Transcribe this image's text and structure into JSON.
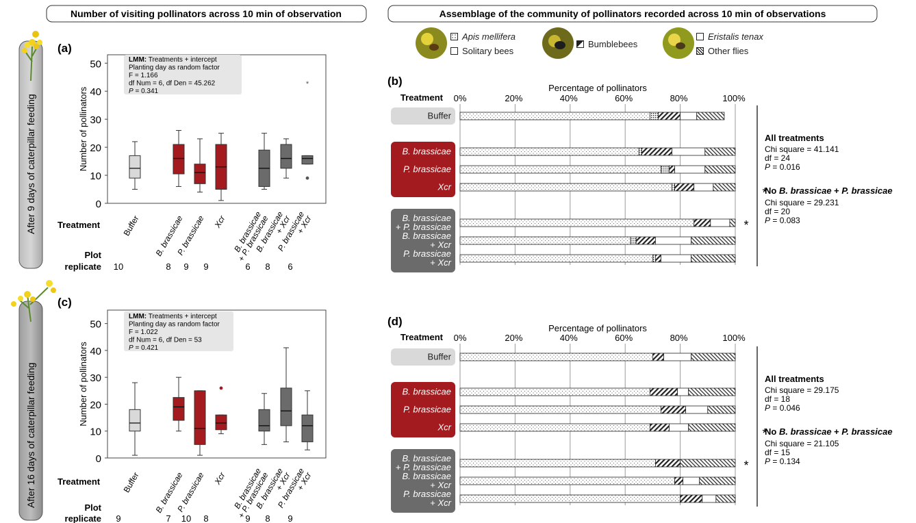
{
  "titles": {
    "left": "Number of visiting pollinators across 10 min of observation",
    "right": "Assemblage of the community of pollinators recorded across 10 min of observations"
  },
  "side_labels": {
    "top": "After 9 days of caterpillar feeding",
    "bottom": "After 16 days of caterpillar feeding"
  },
  "legend": [
    {
      "key": "apis",
      "label": "Apis mellifera",
      "italic": true
    },
    {
      "key": "sol",
      "label": "Solitary bees",
      "italic": false
    },
    {
      "key": "bum",
      "label": "Bumblebees",
      "italic": false
    },
    {
      "key": "eri",
      "label": "Eristalis tenax",
      "italic": true
    },
    {
      "key": "oth",
      "label": "Other flies",
      "italic": false
    }
  ],
  "colors": {
    "buffer": "#d9d9d9",
    "single": "#a31b1f",
    "combo": "#6b6b6b",
    "outline": "#222222"
  },
  "labels": {
    "treatment": "Treatment",
    "plot_replicate_1": "Plot",
    "plot_replicate_2": "replicate",
    "ylabel": "Number of pollinators",
    "pct_title": "Percentage of pollinators",
    "star": "*"
  },
  "chart_data": [
    {
      "panel": "(a)",
      "type": "box",
      "ylabel": "Number of pollinators",
      "ylim": [
        0,
        50
      ],
      "yticks": [
        0,
        10,
        20,
        30,
        40,
        50
      ],
      "stats_box": [
        {
          "bold": "LMM:",
          "text": " Treatments + intercept"
        },
        {
          "bold": "",
          "text": "Planting day as random factor"
        },
        {
          "bold": "",
          "text": "F = 1.166"
        },
        {
          "bold": "",
          "text": "df Num = 6, df Den = 45.262"
        },
        {
          "bold": "",
          "italic": "P",
          "text": " = 0.341"
        }
      ],
      "categories": [
        "Buffer",
        "B. brassicae",
        "P. brassicae",
        "Xcr",
        "B. brassicae + P. brassicae",
        "B. brassicae + Xcr",
        "P. brassicae + Xcr"
      ],
      "groups": [
        "buffer",
        "single",
        "single",
        "single",
        "combo",
        "combo",
        "combo"
      ],
      "boxes": [
        {
          "min": 5,
          "q1": 9,
          "median": 12.5,
          "q3": 17,
          "max": 22,
          "outliers": []
        },
        {
          "min": 6,
          "q1": 10.5,
          "median": 16,
          "q3": 21,
          "max": 26,
          "outliers": []
        },
        {
          "min": 4,
          "q1": 7,
          "median": 11,
          "q3": 14,
          "max": 23,
          "outliers": []
        },
        {
          "min": 1,
          "q1": 5,
          "median": 13,
          "q3": 21,
          "max": 25,
          "outliers": []
        },
        {
          "min": 5,
          "q1": 6,
          "median": 12.5,
          "q3": 19,
          "max": 25,
          "outliers": []
        },
        {
          "min": 9,
          "q1": 12.5,
          "median": 16,
          "q3": 21,
          "max": 23,
          "outliers": []
        },
        {
          "min": 14,
          "q1": 14,
          "median": 16,
          "q3": 17,
          "max": 17,
          "outliers": [
            9
          ],
          "star": 43
        }
      ],
      "replicates": [
        "10",
        "8",
        "9",
        "9",
        "6",
        "8",
        "6"
      ]
    },
    {
      "panel": "(c)",
      "type": "box",
      "ylabel": "Number of pollinators",
      "ylim": [
        0,
        55
      ],
      "yticks": [
        0,
        10,
        20,
        30,
        40,
        50
      ],
      "stats_box": [
        {
          "bold": "LMM:",
          "text": " Treatments + intercept"
        },
        {
          "bold": "",
          "text": "Planting day as random factor"
        },
        {
          "bold": "",
          "text": "F = 1.022"
        },
        {
          "bold": "",
          "text": "df Num = 6, df Den = 53"
        },
        {
          "bold": "",
          "italic": "P",
          "text": " = 0.421"
        }
      ],
      "categories": [
        "Buffer",
        "B. brassicae",
        "P. brassicae",
        "Xcr",
        "B. brassicae + P. brassicae",
        "B. brassicae + Xcr",
        "P. brassicae + Xcr"
      ],
      "groups": [
        "buffer",
        "single",
        "single",
        "single",
        "combo",
        "combo",
        "combo"
      ],
      "boxes": [
        {
          "min": 1,
          "q1": 10,
          "median": 13,
          "q3": 18,
          "max": 28,
          "outliers": []
        },
        {
          "min": 10,
          "q1": 14,
          "median": 19,
          "q3": 22.5,
          "max": 30,
          "outliers": []
        },
        {
          "min": 1,
          "q1": 5,
          "median": 11,
          "q3": 25,
          "max": 25,
          "outliers": []
        },
        {
          "min": 9,
          "q1": 10.5,
          "median": 13,
          "q3": 16,
          "max": 16,
          "outliers": [
            26
          ]
        },
        {
          "min": 5,
          "q1": 10,
          "median": 12,
          "q3": 18,
          "max": 24,
          "outliers": []
        },
        {
          "min": 6,
          "q1": 12,
          "median": 17.5,
          "q3": 26,
          "max": 41,
          "outliers": []
        },
        {
          "min": 3,
          "q1": 6,
          "median": 12,
          "q3": 16,
          "max": 25,
          "outliers": []
        }
      ],
      "replicates": [
        "9",
        "7",
        "10",
        "8",
        "9",
        "8",
        "9"
      ]
    },
    {
      "panel": "(b)",
      "type": "stacked-bar-horizontal",
      "xlabel": "Percentage of pollinators",
      "xticks": [
        "0%",
        "20%",
        "40%",
        "60%",
        "80%",
        "100%"
      ],
      "series_order": [
        "apis",
        "sol",
        "bum",
        "eri",
        "oth"
      ],
      "groups": [
        {
          "color": "buffer",
          "rows": [
            {
              "label": [
                "Buffer"
              ],
              "values": [
                69,
                3,
                8,
                6,
                10
              ]
            }
          ]
        },
        {
          "color": "single",
          "rows": [
            {
              "label": [
                "B. brassicae"
              ],
              "values": [
                65,
                1,
                11,
                12,
                11
              ]
            },
            {
              "label": [
                "P. brassicae"
              ],
              "values": [
                73,
                3,
                2,
                11,
                11
              ]
            },
            {
              "label": [
                "Xcr"
              ],
              "values": [
                77,
                1,
                7,
                7,
                8
              ]
            }
          ]
        },
        {
          "color": "combo",
          "rows": [
            {
              "label": [
                "B. brassicae",
                "+ P. brassicae"
              ],
              "values": [
                85,
                0,
                6,
                7,
                2
              ]
            },
            {
              "label": [
                "B. brassicae",
                "+ Xcr"
              ],
              "values": [
                62,
                2,
                7,
                13,
                16
              ]
            },
            {
              "label": [
                "P. brassicae",
                "+ Xcr"
              ],
              "values": [
                70,
                1,
                2,
                11,
                16
              ]
            }
          ]
        }
      ],
      "star_row": 4,
      "stats": {
        "all_title": "All treatments",
        "all": [
          "Chi square = 41.141",
          "df = 24",
          "P = 0.016"
        ],
        "no_title": "No B. brassicae + P. brassicae",
        "no": [
          "Chi square = 29.231",
          "df = 20",
          "P = 0.083"
        ]
      }
    },
    {
      "panel": "(d)",
      "type": "stacked-bar-horizontal",
      "xlabel": "Percentage of pollinators",
      "xticks": [
        "0%",
        "20%",
        "40%",
        "60%",
        "80%",
        "100%"
      ],
      "series_order": [
        "apis",
        "sol",
        "bum",
        "eri",
        "oth"
      ],
      "groups": [
        {
          "color": "buffer",
          "rows": [
            {
              "label": [
                "Buffer"
              ],
              "values": [
                70,
                0,
                4,
                10,
                16
              ]
            }
          ]
        },
        {
          "color": "single",
          "rows": [
            {
              "label": [
                "B. brassicae"
              ],
              "values": [
                69,
                0,
                10,
                4,
                17
              ]
            },
            {
              "label": [
                "P. brassicae"
              ],
              "values": [
                73,
                0,
                9,
                8,
                10
              ]
            },
            {
              "label": [
                "Xcr"
              ],
              "values": [
                69,
                0,
                7,
                7,
                17
              ]
            }
          ]
        },
        {
          "color": "combo",
          "rows": [
            {
              "label": [
                "B. brassicae",
                "+ P. brassicae"
              ],
              "values": [
                71,
                0,
                9,
                0,
                20
              ]
            },
            {
              "label": [
                "B. brassicae",
                "+ Xcr"
              ],
              "values": [
                78,
                0,
                3,
                6,
                13
              ]
            },
            {
              "label": [
                "P. brassicae",
                "+ Xcr"
              ],
              "values": [
                80,
                0,
                8,
                5,
                7
              ]
            }
          ]
        }
      ],
      "star_row": 4,
      "stats": {
        "all_title": "All treatments",
        "all": [
          "Chi square = 29.175",
          "df = 18",
          "P = 0.046"
        ],
        "no_title": "No B. brassicae + P. brassicae",
        "no": [
          "Chi square = 21.105",
          "df = 15",
          "P = 0.134"
        ]
      }
    }
  ]
}
